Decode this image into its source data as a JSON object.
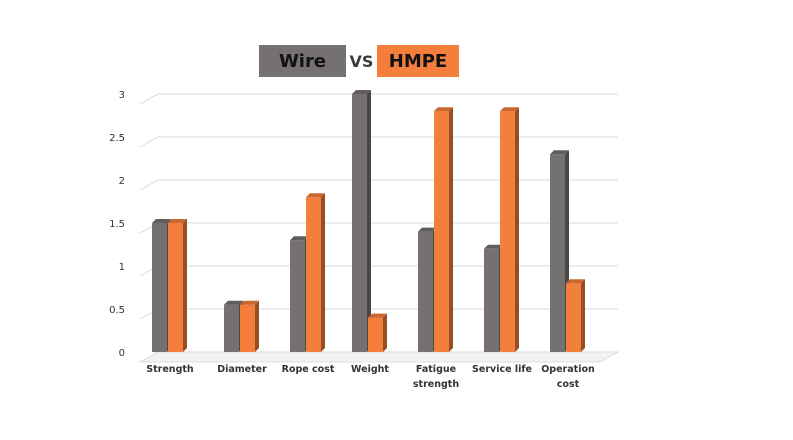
{
  "legend": {
    "wire_label": "Wire",
    "vs_label": "VS",
    "hmpe_label": "HMPE"
  },
  "colors": {
    "wire": "#767171",
    "hmpe": "#f47e3b",
    "grid": "#d9d9d9"
  },
  "chart_data": {
    "type": "bar",
    "categories": [
      [
        "Strength"
      ],
      [
        "Diameter"
      ],
      [
        "Rope cost"
      ],
      [
        "Weight"
      ],
      [
        "Fatigue",
        "strength"
      ],
      [
        "Service life"
      ],
      [
        "Operation",
        "cost"
      ]
    ],
    "series": [
      {
        "name": "Wire",
        "values": [
          1.5,
          0.55,
          1.3,
          3.0,
          1.4,
          1.2,
          2.3
        ]
      },
      {
        "name": "HMPE",
        "values": [
          1.5,
          0.55,
          1.8,
          0.4,
          2.8,
          2.8,
          0.8
        ]
      }
    ],
    "ylim": [
      0,
      3
    ],
    "yticks": [
      "0",
      "0.5",
      "1",
      "1.5",
      "2",
      "2.5",
      "3"
    ],
    "grid": true,
    "legend_position": "top-center"
  }
}
